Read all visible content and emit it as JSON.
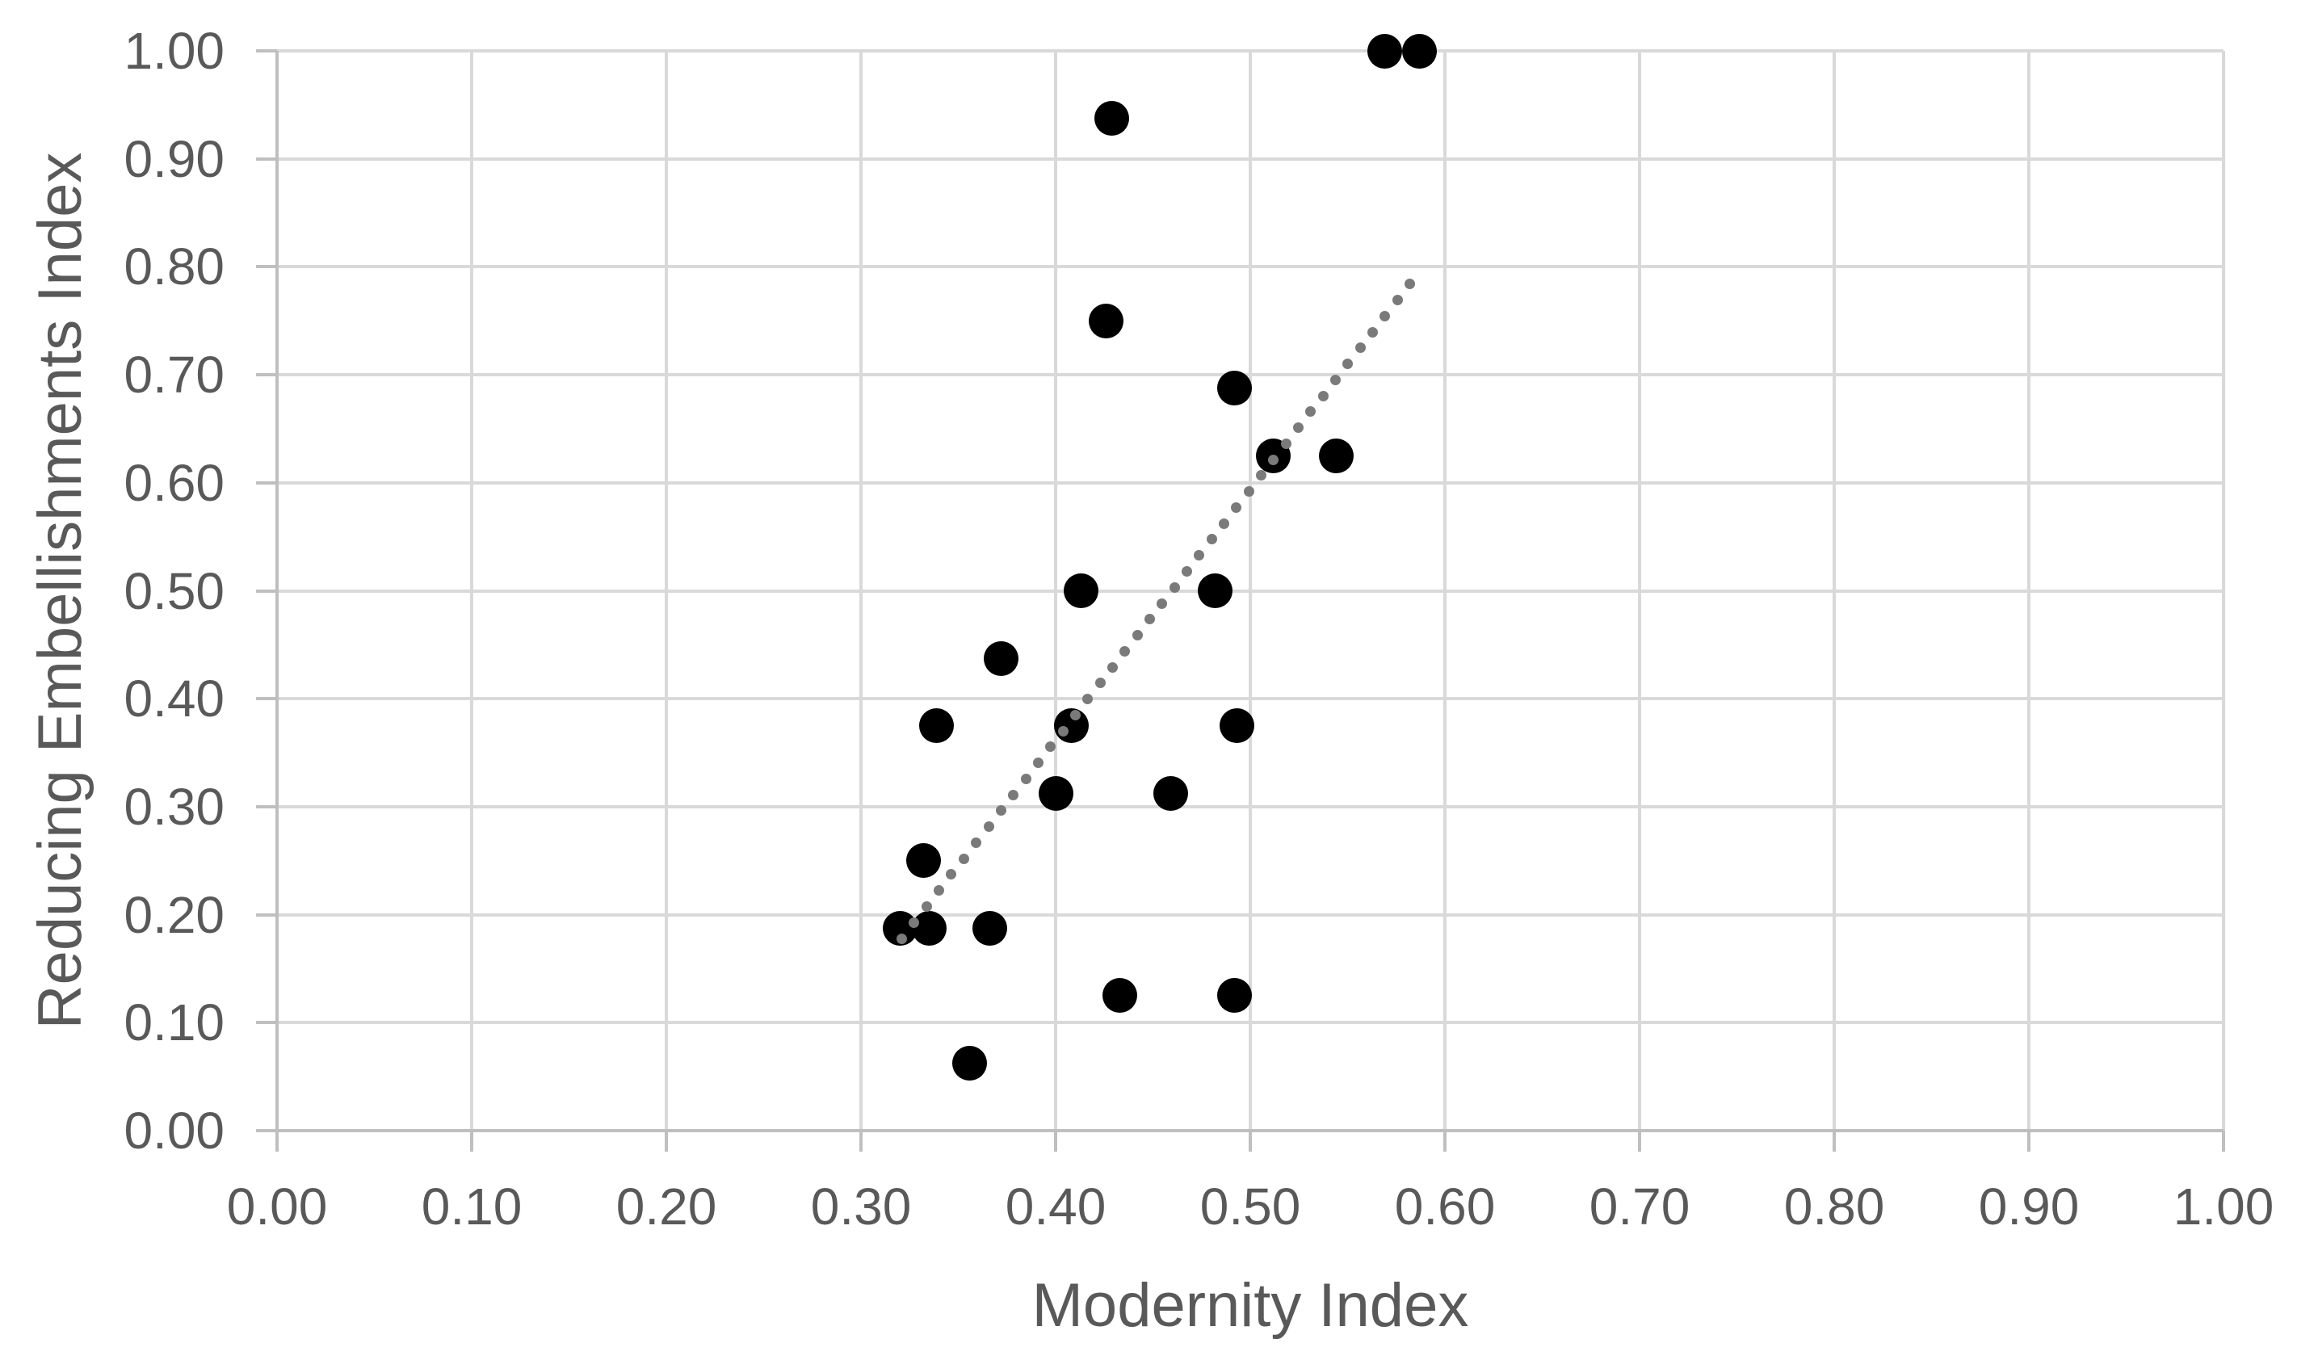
{
  "chart_data": {
    "type": "scatter",
    "title": "",
    "xlabel": "Modernity Index",
    "ylabel": "Reducing Embellishments Index",
    "xlim": [
      0.0,
      1.0
    ],
    "ylim": [
      0.0,
      1.0
    ],
    "x_tick_step": 0.1,
    "y_tick_step": 0.1,
    "grid": true,
    "legend": "none",
    "x_tick_labels": [
      "0.00",
      "0.10",
      "0.20",
      "0.30",
      "0.40",
      "0.50",
      "0.60",
      "0.70",
      "0.80",
      "0.90",
      "1.00"
    ],
    "y_tick_labels": [
      "0.00",
      "0.10",
      "0.20",
      "0.30",
      "0.40",
      "0.50",
      "0.60",
      "0.70",
      "0.80",
      "0.90",
      "1.00"
    ],
    "points": [
      [
        0.569,
        1.0
      ],
      [
        0.587,
        1.0
      ],
      [
        0.429,
        0.9375
      ],
      [
        0.426,
        0.75
      ],
      [
        0.492,
        0.6875
      ],
      [
        0.512,
        0.625
      ],
      [
        0.544,
        0.625
      ],
      [
        0.413,
        0.5
      ],
      [
        0.482,
        0.5
      ],
      [
        0.372,
        0.4375
      ],
      [
        0.339,
        0.375
      ],
      [
        0.408,
        0.375
      ],
      [
        0.493,
        0.375
      ],
      [
        0.4,
        0.3125
      ],
      [
        0.459,
        0.3125
      ],
      [
        0.332,
        0.25
      ],
      [
        0.32,
        0.1875
      ],
      [
        0.335,
        0.1875
      ],
      [
        0.366,
        0.1875
      ],
      [
        0.433,
        0.125
      ],
      [
        0.492,
        0.125
      ],
      [
        0.356,
        0.0625
      ]
    ],
    "trendline": {
      "style": "dotted",
      "x_start": 0.321,
      "y_start": 0.178,
      "x_end": 0.582,
      "y_end": 0.784,
      "dot_spacing_px": 25
    },
    "colors": {
      "marker": "#000000",
      "trendline": "#7a7a7a",
      "gridline": "#d9d9d9",
      "axis_line": "#bfbfbf",
      "text": "#595959"
    }
  }
}
